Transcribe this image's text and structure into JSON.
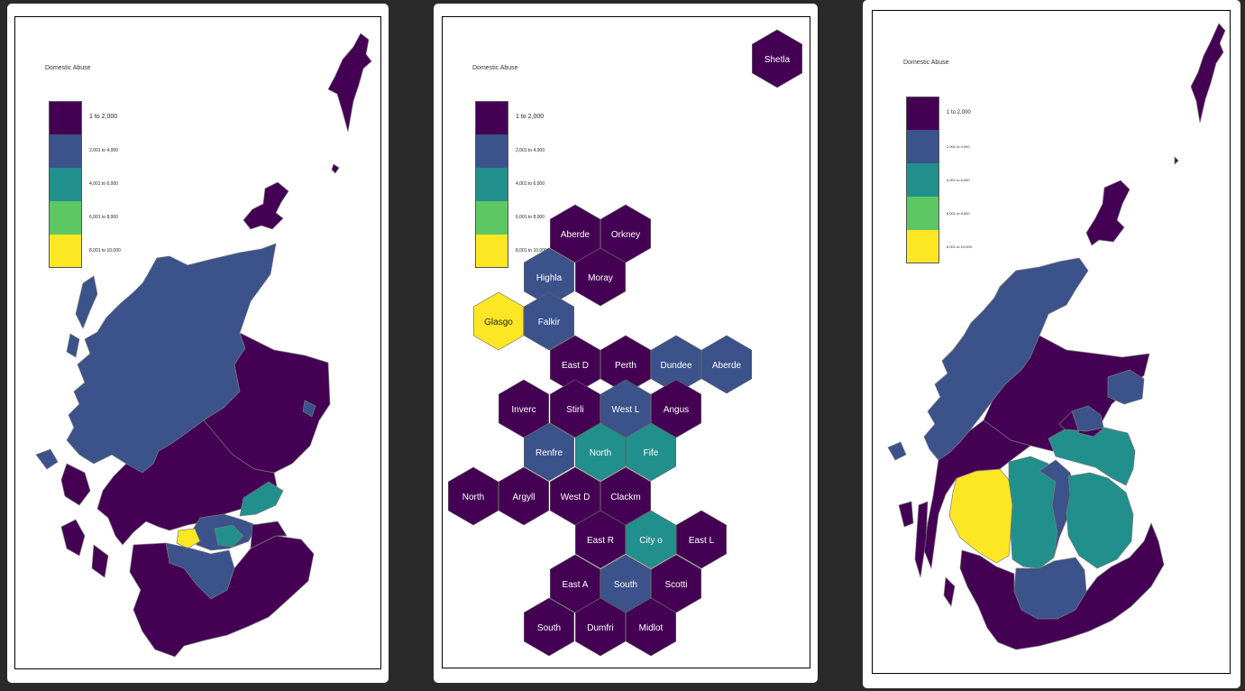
{
  "map_title": "Domestic Abuse",
  "legend": {
    "items": [
      {
        "label": "1 to 2,000",
        "color": "#440154"
      },
      {
        "label": "2,001 to 4,000",
        "color": "#3b528b"
      },
      {
        "label": "4,001 to 6,000",
        "color": "#21908c"
      },
      {
        "label": "6,001 to 8,000",
        "color": "#5dc863"
      },
      {
        "label": "8,001 to 10,000",
        "color": "#fde725"
      }
    ]
  },
  "panels": [
    {
      "name": "geographic-map"
    },
    {
      "name": "hexbin-map"
    },
    {
      "name": "cartogram-map"
    }
  ],
  "hex_cells": [
    {
      "label": "Shetla",
      "cls": 0
    },
    {
      "label": "Aberde",
      "cls": 0
    },
    {
      "label": "Orkney",
      "cls": 0
    },
    {
      "label": "Highla",
      "cls": 1
    },
    {
      "label": "Moray",
      "cls": 0
    },
    {
      "label": "Glasgo",
      "cls": 4
    },
    {
      "label": "Falkir",
      "cls": 1
    },
    {
      "label": "East D",
      "cls": 0
    },
    {
      "label": "Perth",
      "cls": 0
    },
    {
      "label": "Dundee",
      "cls": 1
    },
    {
      "label": "Aberde",
      "cls": 1
    },
    {
      "label": "Inverc",
      "cls": 0
    },
    {
      "label": "Stirli",
      "cls": 0
    },
    {
      "label": "West L",
      "cls": 1
    },
    {
      "label": "Angus",
      "cls": 0
    },
    {
      "label": "Renfre",
      "cls": 1
    },
    {
      "label": "North",
      "cls": 2
    },
    {
      "label": "Fife",
      "cls": 2
    },
    {
      "label": "North",
      "cls": 0
    },
    {
      "label": "Argyll",
      "cls": 0
    },
    {
      "label": "West D",
      "cls": 0
    },
    {
      "label": "Clackm",
      "cls": 0
    },
    {
      "label": "East R",
      "cls": 0
    },
    {
      "label": "City o",
      "cls": 2
    },
    {
      "label": "East L",
      "cls": 0
    },
    {
      "label": "East A",
      "cls": 0
    },
    {
      "label": "South",
      "cls": 1
    },
    {
      "label": "Scotti",
      "cls": 0
    },
    {
      "label": "South",
      "cls": 0
    },
    {
      "label": "Dumfri",
      "cls": 0
    },
    {
      "label": "Midlot",
      "cls": 0
    }
  ]
}
